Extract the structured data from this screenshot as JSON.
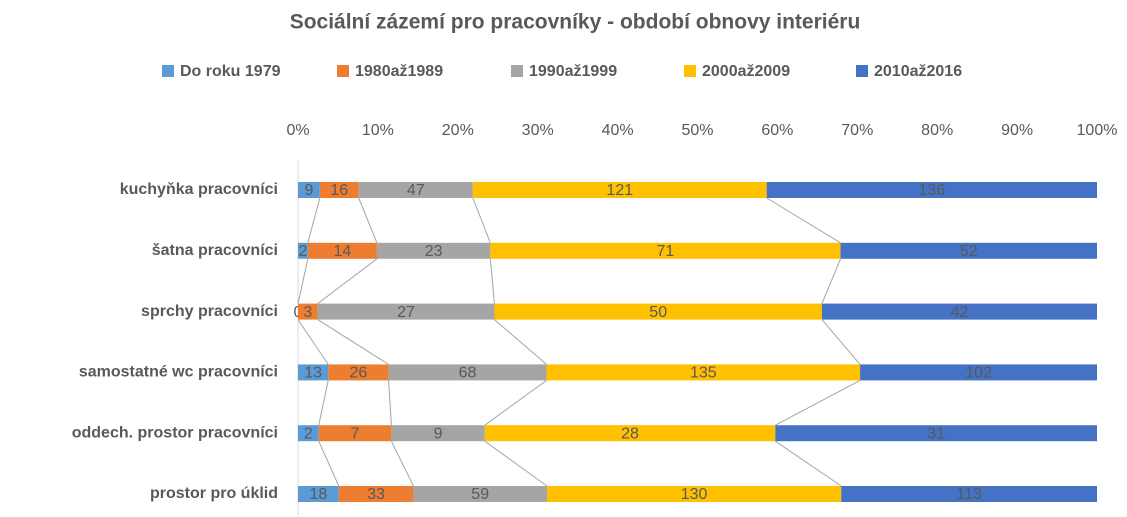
{
  "chart_data": {
    "type": "stacked100_hbar",
    "title": "Sociální zázemí pro pracovníky - období obnovy interiéru",
    "categories": [
      "kuchyňka pracovníci",
      "šatna pracovníci",
      "sprchy pracovníci",
      "samostatné wc pracovníci",
      "oddech. prostor pracovníci",
      "prostor pro úklid"
    ],
    "series": [
      {
        "name": "Do roku 1979",
        "color": "#5b9bd5",
        "values": [
          9,
          2,
          0,
          13,
          2,
          18
        ]
      },
      {
        "name": "1980až1989",
        "color": "#ed7d31",
        "values": [
          16,
          14,
          3,
          26,
          7,
          33
        ]
      },
      {
        "name": "1990až1999",
        "color": "#a5a5a5",
        "values": [
          47,
          23,
          27,
          68,
          9,
          59
        ]
      },
      {
        "name": "2000až2009",
        "color": "#ffc000",
        "values": [
          121,
          71,
          50,
          135,
          28,
          130
        ]
      },
      {
        "name": "2010až2016",
        "color": "#4472c4",
        "values": [
          136,
          52,
          42,
          102,
          31,
          113
        ]
      }
    ],
    "xlim": [
      0,
      100
    ],
    "xticks": [
      {
        "value": 0,
        "label": "0%"
      },
      {
        "value": 10,
        "label": "10%"
      },
      {
        "value": 20,
        "label": "20%"
      },
      {
        "value": 30,
        "label": "30%"
      },
      {
        "value": 40,
        "label": "40%"
      },
      {
        "value": 50,
        "label": "50%"
      },
      {
        "value": 60,
        "label": "60%"
      },
      {
        "value": 70,
        "label": "70%"
      },
      {
        "value": 80,
        "label": "80%"
      },
      {
        "value": 90,
        "label": "90%"
      },
      {
        "value": 100,
        "label": "100%"
      }
    ],
    "legend": "top",
    "series_lines": true
  }
}
